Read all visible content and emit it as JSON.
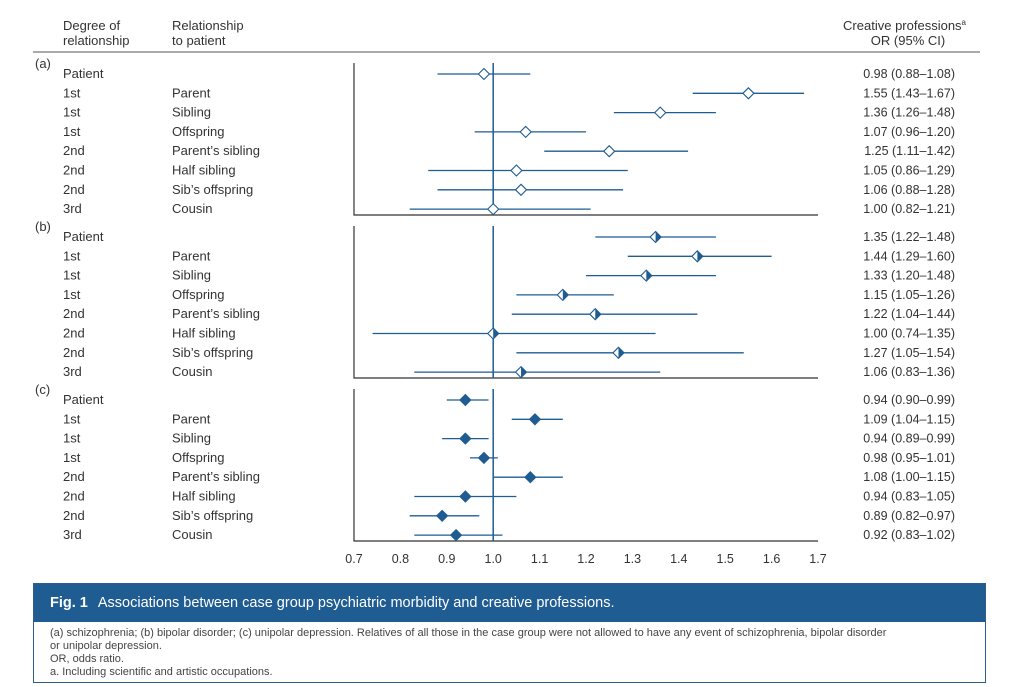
{
  "header": {
    "col1_line1": "Degree of",
    "col1_line2": "relationship",
    "col2_line1": "Relationship",
    "col2_line2": "to patient",
    "col3_line1": "Creative professions",
    "col3_sup": "a",
    "col3_line2": "OR (95% CI)"
  },
  "chart_data": {
    "type": "forest",
    "x_ticks": [
      "0.7",
      "0.8",
      "0.9",
      "1.0",
      "1.1",
      "1.2",
      "1.3",
      "1.4",
      "1.5",
      "1.6",
      "1.7"
    ],
    "xlim": [
      0.7,
      1.7
    ],
    "reference_line": 1.0,
    "panels": [
      {
        "label": "(a)",
        "marker": "open-diamond",
        "rows": [
          {
            "degree": "Patient",
            "relationship": "",
            "or": 0.98,
            "lo": 0.88,
            "hi": 1.08,
            "text": "0.98 (0.88–1.08)"
          },
          {
            "degree": "1st",
            "relationship": "Parent",
            "or": 1.55,
            "lo": 1.43,
            "hi": 1.67,
            "text": "1.55 (1.43–1.67)"
          },
          {
            "degree": "1st",
            "relationship": "Sibling",
            "or": 1.36,
            "lo": 1.26,
            "hi": 1.48,
            "text": "1.36 (1.26–1.48)"
          },
          {
            "degree": "1st",
            "relationship": "Offspring",
            "or": 1.07,
            "lo": 0.96,
            "hi": 1.2,
            "text": "1.07 (0.96–1.20)"
          },
          {
            "degree": "2nd",
            "relationship": "Parent’s sibling",
            "or": 1.25,
            "lo": 1.11,
            "hi": 1.42,
            "text": "1.25 (1.11–1.42)"
          },
          {
            "degree": "2nd",
            "relationship": "Half sibling",
            "or": 1.05,
            "lo": 0.86,
            "hi": 1.29,
            "text": "1.05 (0.86–1.29)"
          },
          {
            "degree": "2nd",
            "relationship": "Sib’s offspring",
            "or": 1.06,
            "lo": 0.88,
            "hi": 1.28,
            "text": "1.06 (0.88–1.28)"
          },
          {
            "degree": "3rd",
            "relationship": "Cousin",
            "or": 1.0,
            "lo": 0.82,
            "hi": 1.21,
            "text": "1.00 (0.82–1.21)"
          }
        ]
      },
      {
        "label": "(b)",
        "marker": "half-diamond",
        "rows": [
          {
            "degree": "Patient",
            "relationship": "",
            "or": 1.35,
            "lo": 1.22,
            "hi": 1.48,
            "text": "1.35 (1.22–1.48)"
          },
          {
            "degree": "1st",
            "relationship": "Parent",
            "or": 1.44,
            "lo": 1.29,
            "hi": 1.6,
            "text": "1.44 (1.29–1.60)"
          },
          {
            "degree": "1st",
            "relationship": "Sibling",
            "or": 1.33,
            "lo": 1.2,
            "hi": 1.48,
            "text": "1.33 (1.20–1.48)"
          },
          {
            "degree": "1st",
            "relationship": "Offspring",
            "or": 1.15,
            "lo": 1.05,
            "hi": 1.26,
            "text": "1.15 (1.05–1.26)"
          },
          {
            "degree": "2nd",
            "relationship": "Parent’s sibling",
            "or": 1.22,
            "lo": 1.04,
            "hi": 1.44,
            "text": "1.22 (1.04–1.44)"
          },
          {
            "degree": "2nd",
            "relationship": "Half sibling",
            "or": 1.0,
            "lo": 0.74,
            "hi": 1.35,
            "text": "1.00 (0.74–1.35)"
          },
          {
            "degree": "2nd",
            "relationship": "Sib’s offspring",
            "or": 1.27,
            "lo": 1.05,
            "hi": 1.54,
            "text": "1.27 (1.05–1.54)"
          },
          {
            "degree": "3rd",
            "relationship": "Cousin",
            "or": 1.06,
            "lo": 0.83,
            "hi": 1.36,
            "text": "1.06 (0.83–1.36)"
          }
        ]
      },
      {
        "label": "(c)",
        "marker": "filled-diamond",
        "rows": [
          {
            "degree": "Patient",
            "relationship": "",
            "or": 0.94,
            "lo": 0.9,
            "hi": 0.99,
            "text": "0.94 (0.90–0.99)"
          },
          {
            "degree": "1st",
            "relationship": "Parent",
            "or": 1.09,
            "lo": 1.04,
            "hi": 1.15,
            "text": "1.09 (1.04–1.15)"
          },
          {
            "degree": "1st",
            "relationship": "Sibling",
            "or": 0.94,
            "lo": 0.89,
            "hi": 0.99,
            "text": "0.94 (0.89–0.99)"
          },
          {
            "degree": "1st",
            "relationship": "Offspring",
            "or": 0.98,
            "lo": 0.95,
            "hi": 1.01,
            "text": "0.98 (0.95–1.01)"
          },
          {
            "degree": "2nd",
            "relationship": "Parent’s sibling",
            "or": 1.08,
            "lo": 1.0,
            "hi": 1.15,
            "text": "1.08 (1.00–1.15)"
          },
          {
            "degree": "2nd",
            "relationship": "Half sibling",
            "or": 0.94,
            "lo": 0.83,
            "hi": 1.05,
            "text": "0.94 (0.83–1.05)"
          },
          {
            "degree": "2nd",
            "relationship": "Sib’s offspring",
            "or": 0.89,
            "lo": 0.82,
            "hi": 0.97,
            "text": "0.89 (0.82–0.97)"
          },
          {
            "degree": "3rd",
            "relationship": "Cousin",
            "or": 0.92,
            "lo": 0.83,
            "hi": 1.02,
            "text": "0.92 (0.83–1.02)"
          }
        ]
      }
    ]
  },
  "caption": {
    "fig_label": "Fig. 1",
    "title": "Associations between case group psychiatric morbidity and creative professions.",
    "note1": "(a) schizophrenia; (b) bipolar disorder; (c) unipolar depression. Relatives of all those in the case group were not allowed to have any event of schizophrenia, bipolar disorder",
    "note2": "or unipolar depression.",
    "note3": "OR, odds ratio.",
    "note4": "a. Including scientific and artistic occupations."
  },
  "colors": {
    "line": "#1f5c92",
    "marker": "#1f5c92",
    "axis": "#333333",
    "caption_bar": "#1f5c92"
  }
}
